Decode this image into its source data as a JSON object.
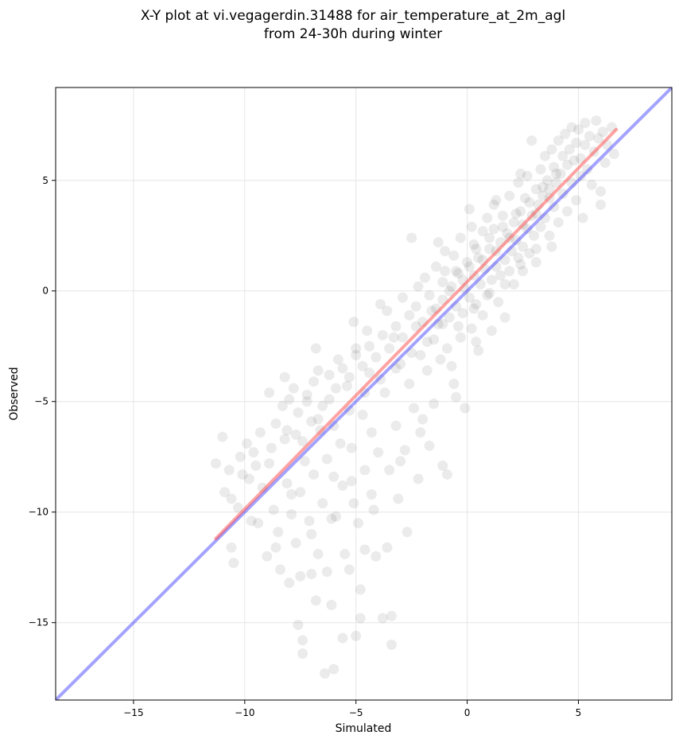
{
  "chart_data": {
    "type": "scatter",
    "title": "X-Y plot at vi.vegagerdin.31488 for air_temperature_at_2m_agl",
    "subtitle": "from 24-30h during winter",
    "xlabel": "Simulated",
    "ylabel": "Observed",
    "xlim": [
      -18.5,
      9.2
    ],
    "ylim": [
      -18.5,
      9.2
    ],
    "xticks": [
      -15,
      -10,
      -5,
      0,
      5
    ],
    "yticks": [
      -15,
      -10,
      -5,
      0,
      5
    ],
    "grid": true,
    "points_color": "#000000",
    "points_opacity": 0.08,
    "identity_line": {
      "color": "#3333ff",
      "x": [
        -18.5,
        9.2
      ],
      "y": [
        -18.5,
        9.2
      ]
    },
    "fit_line": {
      "color": "#ff3333",
      "x": [
        -11.3,
        6.7
      ],
      "y": [
        -11.2,
        7.3
      ]
    },
    "points": [
      [
        -11.3,
        -7.8
      ],
      [
        -11.0,
        -6.6
      ],
      [
        -10.7,
        -8.1
      ],
      [
        -10.6,
        -9.4
      ],
      [
        -10.6,
        -11.6
      ],
      [
        -10.5,
        -12.3
      ],
      [
        -10.3,
        -9.8
      ],
      [
        -10.2,
        -7.5
      ],
      [
        -10.1,
        -8.3
      ],
      [
        -9.9,
        -6.9
      ],
      [
        -9.7,
        -10.4
      ],
      [
        -9.6,
        -7.3
      ],
      [
        -9.4,
        -10.5
      ],
      [
        -9.3,
        -6.4
      ],
      [
        -9.2,
        -8.9
      ],
      [
        -9.0,
        -12.0
      ],
      [
        -8.9,
        -4.6
      ],
      [
        -8.9,
        -7.8
      ],
      [
        -8.7,
        -9.9
      ],
      [
        -8.6,
        -6.0
      ],
      [
        -8.5,
        -10.9
      ],
      [
        -8.4,
        -12.6
      ],
      [
        -8.3,
        -5.2
      ],
      [
        -8.2,
        -3.9
      ],
      [
        -8.2,
        -6.7
      ],
      [
        -8.1,
        -8.7
      ],
      [
        -8.0,
        -13.2
      ],
      [
        -7.9,
        -10.1
      ],
      [
        -7.8,
        -4.4
      ],
      [
        -7.7,
        -6.5
      ],
      [
        -7.7,
        -11.4
      ],
      [
        -7.6,
        -15.1
      ],
      [
        -7.5,
        -9.1
      ],
      [
        -7.5,
        -12.9
      ],
      [
        -7.4,
        -15.8
      ],
      [
        -7.4,
        -16.4
      ],
      [
        -7.3,
        -7.7
      ],
      [
        -7.2,
        -4.7
      ],
      [
        -7.1,
        -10.4
      ],
      [
        -7.0,
        -5.9
      ],
      [
        -7.0,
        -12.8
      ],
      [
        -6.9,
        -8.3
      ],
      [
        -6.8,
        -14.0
      ],
      [
        -6.7,
        -3.6
      ],
      [
        -6.7,
        -11.9
      ],
      [
        -6.6,
        -6.3
      ],
      [
        -6.5,
        -9.6
      ],
      [
        -6.4,
        -17.3
      ],
      [
        -6.3,
        -7.6
      ],
      [
        -6.3,
        -12.7
      ],
      [
        -6.2,
        -4.9
      ],
      [
        -6.1,
        -14.2
      ],
      [
        -6.0,
        -8.4
      ],
      [
        -6.0,
        -17.1
      ],
      [
        -5.9,
        -10.2
      ],
      [
        -5.8,
        -3.1
      ],
      [
        -5.7,
        -6.9
      ],
      [
        -5.6,
        -15.7
      ],
      [
        -5.6,
        -8.8
      ],
      [
        -5.5,
        -11.9
      ],
      [
        -5.4,
        -4.3
      ],
      [
        -5.3,
        -12.6
      ],
      [
        -5.2,
        -7.1
      ],
      [
        -5.1,
        -9.6
      ],
      [
        -5.0,
        -15.6
      ],
      [
        -5.0,
        -2.6
      ],
      [
        -4.9,
        -10.5
      ],
      [
        -4.8,
        -14.8
      ],
      [
        -4.8,
        -13.5
      ],
      [
        -4.7,
        -5.6
      ],
      [
        -4.6,
        -8.1
      ],
      [
        -4.6,
        -11.7
      ],
      [
        -4.5,
        -1.8
      ],
      [
        -4.4,
        -3.7
      ],
      [
        -4.3,
        -6.4
      ],
      [
        -4.3,
        -9.2
      ],
      [
        -4.1,
        -12.0
      ],
      [
        -4.0,
        -7.3
      ],
      [
        -3.9,
        -0.6
      ],
      [
        -3.8,
        -14.8
      ],
      [
        -3.7,
        -4.6
      ],
      [
        -3.6,
        -11.6
      ],
      [
        -3.5,
        -8.1
      ],
      [
        -3.4,
        -14.7
      ],
      [
        -3.4,
        -16.0
      ],
      [
        -3.3,
        -2.1
      ],
      [
        -3.2,
        -6.1
      ],
      [
        -3.1,
        -9.4
      ],
      [
        -3.0,
        -3.3
      ],
      [
        -2.9,
        -0.3
      ],
      [
        -2.8,
        -7.2
      ],
      [
        -2.7,
        -10.9
      ],
      [
        -2.6,
        -4.2
      ],
      [
        -2.5,
        2.4
      ],
      [
        -2.4,
        -5.3
      ],
      [
        -2.3,
        -1.6
      ],
      [
        -2.2,
        -8.5
      ],
      [
        -2.1,
        -2.9
      ],
      [
        -2.0,
        -5.8
      ],
      [
        -1.9,
        0.6
      ],
      [
        -1.8,
        -3.6
      ],
      [
        -1.7,
        -7.0
      ],
      [
        -1.6,
        -0.9
      ],
      [
        -1.5,
        -2.2
      ],
      [
        -1.5,
        -5.1
      ],
      [
        -1.4,
        1.1
      ],
      [
        -1.3,
        -1.5
      ],
      [
        -1.3,
        2.2
      ],
      [
        -1.2,
        -3.1
      ],
      [
        -1.1,
        -0.4
      ],
      [
        -1.1,
        -7.9
      ],
      [
        -1.0,
        0.9
      ],
      [
        -0.9,
        -2.6
      ],
      [
        -0.9,
        -8.3
      ],
      [
        -0.8,
        -1.2
      ],
      [
        -0.7,
        0.2
      ],
      [
        -0.7,
        -3.4
      ],
      [
        -0.6,
        1.6
      ],
      [
        -0.5,
        -4.8
      ],
      [
        -0.5,
        -0.7
      ],
      [
        -0.4,
        0.8
      ],
      [
        -0.3,
        -2.1
      ],
      [
        -0.3,
        2.4
      ],
      [
        -0.2,
        -1.0
      ],
      [
        -0.1,
        0.1
      ],
      [
        -0.1,
        -5.3
      ],
      [
        0.0,
        1.3
      ],
      [
        0.1,
        -0.3
      ],
      [
        0.1,
        3.7
      ],
      [
        0.2,
        -1.7
      ],
      [
        0.3,
        0.7
      ],
      [
        0.3,
        2.1
      ],
      [
        0.4,
        -0.6
      ],
      [
        0.5,
        1.5
      ],
      [
        0.5,
        -2.7
      ],
      [
        0.6,
        0.3
      ],
      [
        0.7,
        2.7
      ],
      [
        0.7,
        -1.1
      ],
      [
        0.8,
        1.0
      ],
      [
        0.9,
        3.3
      ],
      [
        0.9,
        -0.2
      ],
      [
        1.0,
        1.9
      ],
      [
        1.1,
        0.5
      ],
      [
        1.1,
        -1.8
      ],
      [
        1.2,
        2.8
      ],
      [
        1.3,
        1.1
      ],
      [
        1.3,
        4.1
      ],
      [
        1.4,
        -0.5
      ],
      [
        1.5,
        2.2
      ],
      [
        1.5,
        0.7
      ],
      [
        1.6,
        3.4
      ],
      [
        1.7,
        1.4
      ],
      [
        1.7,
        -1.2
      ],
      [
        1.8,
        2.6
      ],
      [
        1.9,
        0.9
      ],
      [
        1.9,
        4.3
      ],
      [
        2.0,
        1.8
      ],
      [
        2.1,
        3.1
      ],
      [
        2.1,
        0.3
      ],
      [
        2.2,
        2.3
      ],
      [
        2.3,
        4.9
      ],
      [
        2.3,
        1.5
      ],
      [
        2.4,
        3.6
      ],
      [
        2.5,
        2.0
      ],
      [
        2.5,
        0.9
      ],
      [
        2.6,
        4.2
      ],
      [
        2.7,
        2.8
      ],
      [
        2.7,
        5.2
      ],
      [
        2.8,
        1.7
      ],
      [
        2.9,
        3.4
      ],
      [
        2.9,
        6.8
      ],
      [
        3.0,
        2.5
      ],
      [
        3.1,
        4.6
      ],
      [
        3.1,
        1.9
      ],
      [
        3.2,
        3.9
      ],
      [
        3.3,
        5.5
      ],
      [
        3.3,
        2.9
      ],
      [
        3.4,
        4.3
      ],
      [
        3.5,
        6.1
      ],
      [
        3.5,
        3.3
      ],
      [
        3.6,
        5.0
      ],
      [
        3.7,
        2.5
      ],
      [
        3.7,
        4.6
      ],
      [
        3.8,
        6.4
      ],
      [
        3.9,
        3.8
      ],
      [
        3.9,
        5.6
      ],
      [
        4.0,
        4.9
      ],
      [
        4.1,
        6.8
      ],
      [
        4.1,
        3.1
      ],
      [
        4.2,
        5.3
      ],
      [
        4.3,
        6.1
      ],
      [
        4.3,
        4.4
      ],
      [
        4.4,
        7.1
      ],
      [
        4.5,
        5.7
      ],
      [
        4.5,
        3.6
      ],
      [
        4.6,
        6.4
      ],
      [
        4.7,
        4.9
      ],
      [
        4.7,
        7.4
      ],
      [
        4.8,
        5.9
      ],
      [
        4.9,
        6.7
      ],
      [
        4.9,
        4.1
      ],
      [
        5.0,
        7.3
      ],
      [
        5.1,
        6.0
      ],
      [
        5.1,
        5.2
      ],
      [
        5.2,
        3.3
      ],
      [
        5.3,
        6.6
      ],
      [
        5.3,
        7.6
      ],
      [
        5.4,
        5.5
      ],
      [
        5.5,
        7.0
      ],
      [
        5.6,
        4.8
      ],
      [
        5.7,
        6.3
      ],
      [
        5.8,
        7.7
      ],
      [
        5.9,
        6.9
      ],
      [
        6.0,
        4.5
      ],
      [
        6.1,
        7.2
      ],
      [
        6.2,
        5.8
      ],
      [
        6.3,
        6.6
      ],
      [
        6.5,
        7.4
      ],
      [
        6.6,
        6.2
      ],
      [
        6.0,
        3.9
      ],
      [
        -8.0,
        -4.9
      ],
      [
        -7.6,
        -5.5
      ],
      [
        -7.2,
        -5.0
      ],
      [
        -6.9,
        -4.1
      ],
      [
        -6.5,
        -5.2
      ],
      [
        -6.2,
        -3.8
      ],
      [
        -5.9,
        -4.4
      ],
      [
        -5.6,
        -3.5
      ],
      [
        -5.3,
        -3.9
      ],
      [
        -5.0,
        -2.9
      ],
      [
        -4.7,
        -3.4
      ],
      [
        -4.4,
        -2.5
      ],
      [
        -4.1,
        -3.0
      ],
      [
        -3.8,
        -2.0
      ],
      [
        -3.5,
        -2.6
      ],
      [
        -3.2,
        -1.6
      ],
      [
        -2.9,
        -2.1
      ],
      [
        -2.6,
        -1.1
      ],
      [
        -2.3,
        -0.7
      ],
      [
        -2.0,
        -1.4
      ],
      [
        -1.7,
        -0.2
      ],
      [
        -1.4,
        -0.8
      ],
      [
        -1.1,
        0.4
      ],
      [
        -0.8,
        0.0
      ],
      [
        -0.5,
        0.9
      ],
      [
        -0.2,
        0.5
      ],
      [
        0.1,
        1.1
      ],
      [
        0.4,
        1.9
      ],
      [
        0.7,
        1.4
      ],
      [
        1.0,
        2.4
      ],
      [
        1.3,
        1.8
      ],
      [
        1.6,
        2.9
      ],
      [
        1.9,
        2.4
      ],
      [
        2.2,
        3.5
      ],
      [
        2.5,
        3.0
      ],
      [
        2.8,
        4.0
      ],
      [
        3.1,
        3.5
      ],
      [
        3.4,
        4.7
      ],
      [
        3.7,
        4.2
      ],
      [
        4.0,
        5.3
      ],
      [
        -9.5,
        -7.9
      ],
      [
        -8.8,
        -7.1
      ],
      [
        -8.1,
        -6.3
      ],
      [
        -7.4,
        -6.8
      ],
      [
        -6.7,
        -5.8
      ],
      [
        -6.0,
        -6.1
      ],
      [
        -5.3,
        -5.4
      ],
      [
        -4.6,
        -4.6
      ],
      [
        -3.9,
        -4.0
      ],
      [
        -3.2,
        -3.5
      ],
      [
        -2.5,
        -2.8
      ],
      [
        -1.8,
        -2.3
      ],
      [
        -1.1,
        -1.5
      ],
      [
        -0.4,
        -1.6
      ],
      [
        0.3,
        -0.8
      ],
      [
        1.0,
        -0.1
      ],
      [
        1.7,
        0.3
      ],
      [
        2.4,
        1.2
      ],
      [
        3.1,
        1.3
      ],
      [
        3.8,
        2.0
      ],
      [
        -6.8,
        -2.6
      ],
      [
        -5.1,
        -1.4
      ],
      [
        -3.6,
        -0.9
      ],
      [
        -2.2,
        0.2
      ],
      [
        -1.0,
        1.8
      ],
      [
        0.2,
        2.9
      ],
      [
        1.2,
        3.9
      ],
      [
        2.4,
        5.3
      ],
      [
        -7.9,
        -9.2
      ],
      [
        -6.1,
        -10.3
      ],
      [
        -5.2,
        -8.6
      ],
      [
        -4.2,
        -9.9
      ],
      [
        -3.0,
        -7.7
      ],
      [
        -2.1,
        -6.4
      ],
      [
        -0.6,
        -4.2
      ],
      [
        0.4,
        -2.3
      ],
      [
        -9.8,
        -8.5
      ],
      [
        -10.9,
        -9.1
      ],
      [
        -8.6,
        -11.6
      ],
      [
        -7.0,
        -11.0
      ]
    ]
  }
}
